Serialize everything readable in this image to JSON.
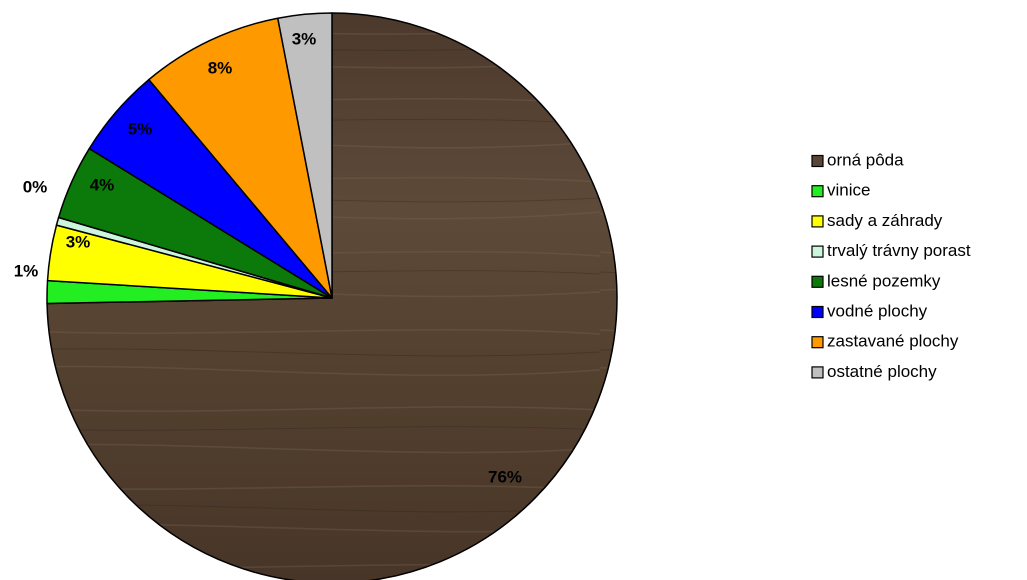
{
  "chart_data": {
    "type": "pie",
    "title": "",
    "start_angle_deg": 0,
    "direction": "clockwise",
    "legend_position": "right",
    "slices": [
      {
        "label": "orná pôda",
        "value": 76,
        "display": "76%",
        "color": "#5a4636"
      },
      {
        "label": "vinice",
        "value": 1.3,
        "display": "1%",
        "color": "#22ee22"
      },
      {
        "label": "sady a záhrady",
        "value": 3.2,
        "display": "3%",
        "color": "#ffff00"
      },
      {
        "label": "trvalý trávny porast",
        "value": 0.45,
        "display": "0%",
        "color": "#ccf5dd"
      },
      {
        "label": "lesné pozemky",
        "value": 4.3,
        "display": "4%",
        "color": "#0b7a0b"
      },
      {
        "label": "vodné plochy",
        "value": 5.2,
        "display": "5%",
        "color": "#0000ff"
      },
      {
        "label": "zastavané plochy",
        "value": 8.2,
        "display": "8%",
        "color": "#ff9900"
      },
      {
        "label": "ostatné plochy",
        "value": 3.1,
        "display": "3%",
        "color": "#c0c0c0"
      }
    ]
  }
}
